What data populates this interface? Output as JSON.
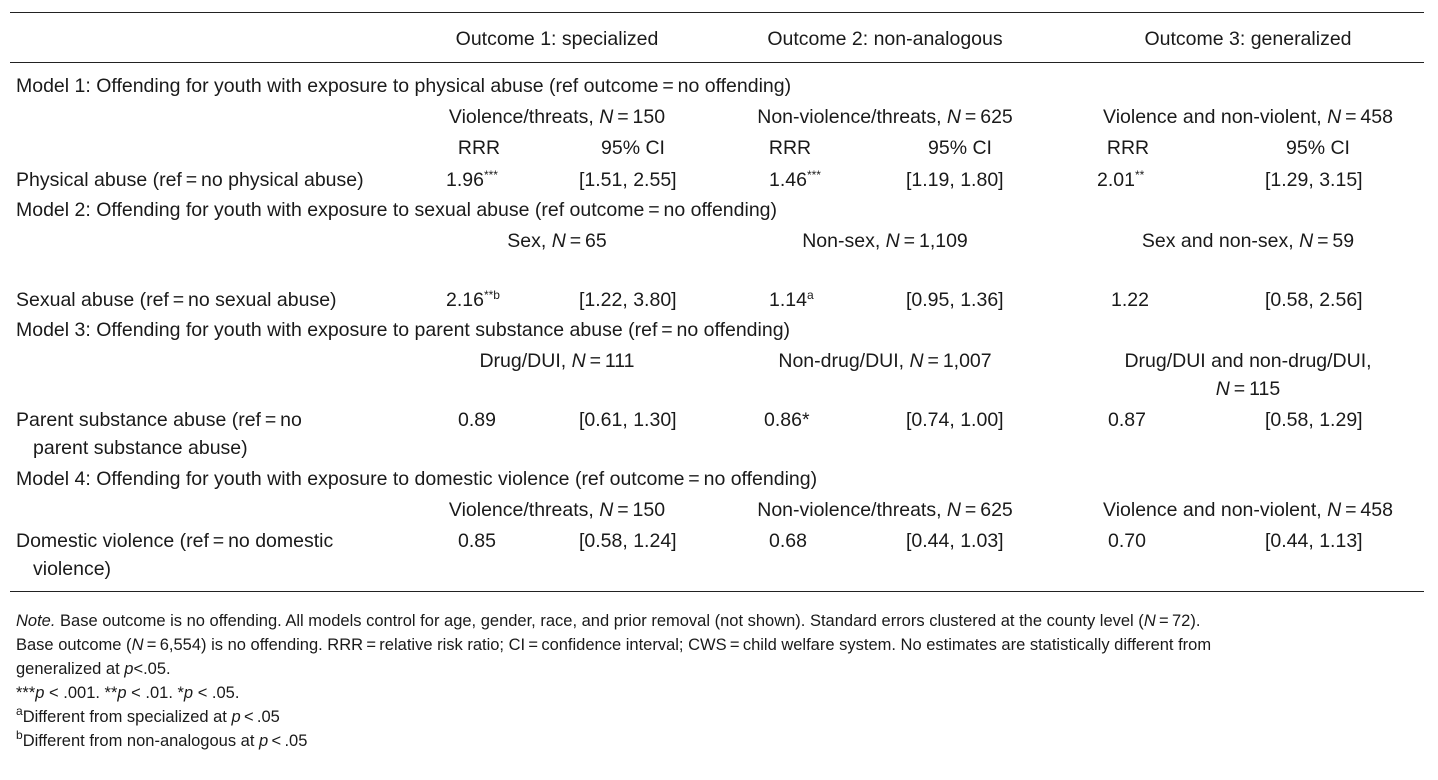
{
  "table": {
    "outcomes": [
      "Outcome 1: specialized",
      "Outcome 2: non-analogous",
      "Outcome 3: generalized"
    ],
    "stat_headers": {
      "rrr": "RRR",
      "ci": "95% CI"
    },
    "models": [
      {
        "title": "Model 1: Offending for youth with exposure to physical abuse (ref outcome = no offending)",
        "groups": [
          {
            "label": "Violence/threats, ",
            "n": "150"
          },
          {
            "label": "Non-violence/threats, ",
            "n": "625"
          },
          {
            "label": "Violence and non-violent, ",
            "n": "458"
          }
        ],
        "row_label": "Physical abuse (ref = no physical abuse)",
        "values": [
          {
            "rrr": "1.96",
            "sig": "***",
            "sup": "",
            "ci": "[1.51, 2.55]"
          },
          {
            "rrr": "1.46",
            "sig": "***",
            "sup": "",
            "ci": "[1.19, 1.80]"
          },
          {
            "rrr": "2.01",
            "sig": "**",
            "sup": "",
            "ci": "[1.29, 3.15]"
          }
        ]
      },
      {
        "title": "Model 2: Offending for youth with exposure to sexual abuse (ref outcome = no offending)",
        "groups": [
          {
            "label": "Sex, ",
            "n": "65"
          },
          {
            "label": "Non-sex, ",
            "n": "1,109"
          },
          {
            "label": "Sex and non-sex, ",
            "n": "59"
          }
        ],
        "row_label": "Sexual abuse (ref = no sexual abuse)",
        "values": [
          {
            "rrr": "2.16",
            "sig": "**",
            "sup": "b",
            "ci": "[1.22, 3.80]"
          },
          {
            "rrr": "1.14",
            "sig": "",
            "sup": "a",
            "ci": "[0.95, 1.36]"
          },
          {
            "rrr": "1.22",
            "sig": "",
            "sup": "",
            "ci": "[0.58, 2.56]"
          }
        ]
      },
      {
        "title": "Model 3: Offending for youth with exposure to parent substance abuse (ref = no offending)",
        "groups": [
          {
            "label": "Drug/DUI, ",
            "n": "111"
          },
          {
            "label": "Non-drug/DUI, ",
            "n": "1,007"
          },
          {
            "label_line1": "Drug/DUI and non-drug/DUI,",
            "n": "115"
          }
        ],
        "row_label_line1": "Parent substance abuse (ref = no",
        "row_label_line2": "parent substance abuse)",
        "values": [
          {
            "rrr": "0.89",
            "sig": "",
            "sup": "",
            "ci": "[0.61, 1.30]"
          },
          {
            "rrr": "0.86",
            "sig": "*",
            "sup": "",
            "ci": "[0.74, 1.00]"
          },
          {
            "rrr": "0.87",
            "sig": "",
            "sup": "",
            "ci": "[0.58, 1.29]"
          }
        ]
      },
      {
        "title": "Model 4: Offending for youth with exposure to domestic violence (ref outcome = no offending)",
        "groups": [
          {
            "label": "Violence/threats, ",
            "n": "150"
          },
          {
            "label": "Non-violence/threats, ",
            "n": "625"
          },
          {
            "label": "Violence and non-violent, ",
            "n": "458"
          }
        ],
        "row_label_line1": "Domestic violence (ref = no domestic",
        "row_label_line2": "violence)",
        "values": [
          {
            "rrr": "0.85",
            "sig": "",
            "sup": "",
            "ci": "[0.58, 1.24]"
          },
          {
            "rrr": "0.68",
            "sig": "",
            "sup": "",
            "ci": "[0.44, 1.03]"
          },
          {
            "rrr": "0.70",
            "sig": "",
            "sup": "",
            "ci": "[0.44, 1.13]"
          }
        ]
      }
    ]
  },
  "notes": {
    "note_label": "Note.",
    "note_part1": " Base outcome is no offending. All models control for age, gender, race, and prior removal (not shown). Standard errors clustered at the county level (",
    "n_county": "72",
    "note_part2": ").",
    "line2_prefix": "Base outcome (",
    "n_base": "6,554",
    "line2_rest": ") is no offending. RRR = relative risk ratio; CI = confidence interval; CWS = child welfare system. No estimates are statistically different from",
    "line3_prefix": "generalized at ",
    "line3_rest": "<.05.",
    "sig_line": [
      {
        "stars": "***",
        "rest": " < .001. "
      },
      {
        "stars": "**",
        "rest": " < .01. "
      },
      {
        "stars": "*",
        "rest": " < .05."
      }
    ],
    "footnote_a": {
      "mark": "a",
      "text": "Different from specialized at ",
      "rest": " < .05"
    },
    "footnote_b": {
      "mark": "b",
      "text": "Different from non-analogous at ",
      "rest": " < .05"
    },
    "p_symbol": "p",
    "n_symbol": "N",
    "equals": " = "
  }
}
